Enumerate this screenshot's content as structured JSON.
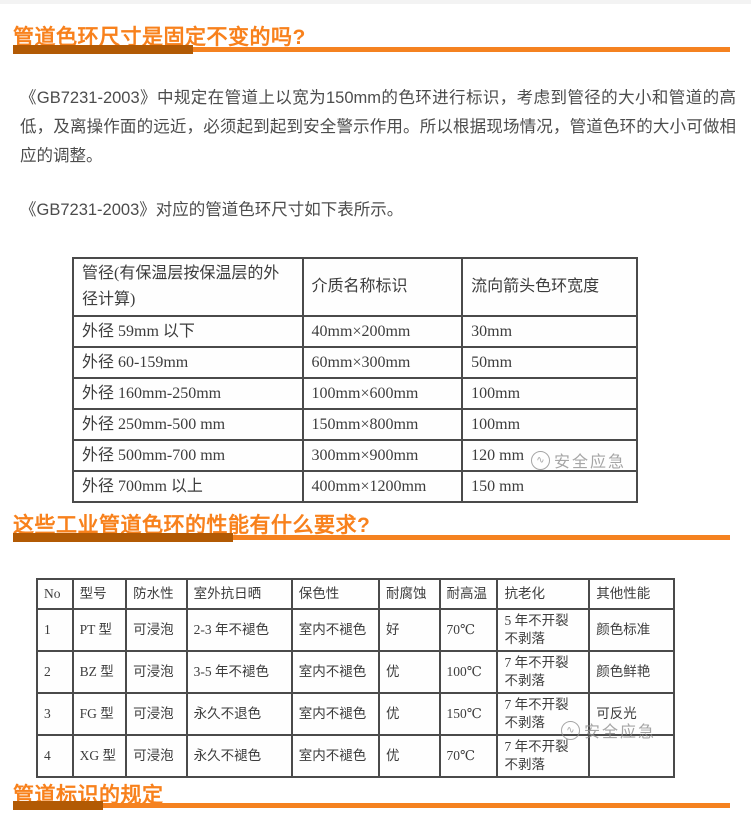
{
  "colors": {
    "heading": "#f8811c",
    "bar_dark": "#b25a04",
    "bar_light": "#f58220",
    "body_text": "#4c4c4c",
    "table_text": "#3c3c3c",
    "table_border": "#4a4a4a",
    "watermark": "#8f8f8f"
  },
  "sections": {
    "q1": {
      "title": "管道色环尺寸是固定不变的吗?"
    },
    "q2": {
      "title": "这些工业管道色环的性能有什么要求?"
    },
    "q3": {
      "title": "管道标识的规定"
    }
  },
  "paragraphs": {
    "p1": "《GB7231-2003》中规定在管道上以宽为150mm的色环进行标识，考虑到管径的大小和管道的高低，及离操作面的远近，必须起到起到安全警示作用。所以根据现场情况，管道色环的大小可做相应的调整。",
    "p2": "《GB7231-2003》对应的管道色环尺寸如下表所示。"
  },
  "ring_size_table": {
    "headers": [
      "管径(有保温层按保温层的外径计算)",
      "介质名称标识",
      "流向箭头色环宽度"
    ],
    "rows": [
      [
        "外径 59mm 以下",
        "40mm×200mm",
        "30mm"
      ],
      [
        "外径 60-159mm",
        "60mm×300mm",
        "50mm"
      ],
      [
        "外径 160mm-250mm",
        "100mm×600mm",
        "100mm"
      ],
      [
        "外径 250mm-500 mm",
        "150mm×800mm",
        "100mm"
      ],
      [
        "外径 500mm-700 mm",
        "300mm×900mm",
        "120 mm"
      ],
      [
        "外径 700mm 以上",
        "400mm×1200mm",
        "150 mm"
      ]
    ]
  },
  "performance_table": {
    "headers": [
      "No",
      "型号",
      "防水性",
      "室外抗日晒",
      "保色性",
      "耐腐蚀",
      "耐高温",
      "抗老化",
      "其他性能"
    ],
    "rows": [
      [
        "1",
        "PT 型",
        "可浸泡",
        "2-3 年不褪色",
        "室内不褪色",
        "好",
        "70℃",
        "5 年不开裂 不剥落",
        "颜色标准"
      ],
      [
        "2",
        "BZ 型",
        "可浸泡",
        "3-5 年不褪色",
        "室内不褪色",
        "优",
        "100℃",
        "7 年不开裂 不剥落",
        "颜色鲜艳"
      ],
      [
        "3",
        "FG 型",
        "可浸泡",
        "永久不退色",
        "室内不褪色",
        "优",
        "150℃",
        "7 年不开裂 不剥落",
        "可反光"
      ],
      [
        "4",
        "XG 型",
        "可浸泡",
        "永久不褪色",
        "室内不褪色",
        "优",
        "70℃",
        "7 年不开裂 不剥落",
        ""
      ]
    ]
  },
  "watermark": {
    "text": "安全应急",
    "logo_glyph": "∿"
  }
}
